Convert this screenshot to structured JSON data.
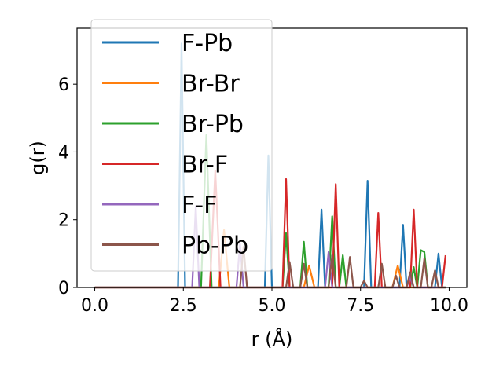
{
  "chart_data": {
    "type": "line",
    "xlabel": "r (Å)",
    "ylabel": "g(r)",
    "xlim": [
      -0.5,
      10.5
    ],
    "ylim": [
      0,
      7.65
    ],
    "xticks": [
      "0.0",
      "2.5",
      "5.0",
      "7.5",
      "10.0"
    ],
    "xtick_values": [
      0,
      2.5,
      5,
      7.5,
      10
    ],
    "yticks": [
      "0",
      "2",
      "4",
      "6"
    ],
    "ytick_values": [
      0,
      2,
      4,
      6
    ],
    "grid": false,
    "legend_position": "top-left",
    "series": [
      {
        "name": "F-Pb",
        "color": "#1f77b4",
        "points": [
          [
            0,
            0
          ],
          [
            2.35,
            0
          ],
          [
            2.45,
            7.2
          ],
          [
            2.55,
            0
          ],
          [
            4.8,
            0
          ],
          [
            4.9,
            3.9
          ],
          [
            5.0,
            0
          ],
          [
            6.3,
            0
          ],
          [
            6.4,
            2.3
          ],
          [
            6.5,
            0
          ],
          [
            7.6,
            0
          ],
          [
            7.7,
            3.15
          ],
          [
            7.8,
            0
          ],
          [
            8.6,
            0
          ],
          [
            8.7,
            1.85
          ],
          [
            8.8,
            0
          ],
          [
            9.6,
            0
          ],
          [
            9.7,
            1.0
          ],
          [
            9.8,
            0
          ],
          [
            9.9,
            0
          ]
        ]
      },
      {
        "name": "Br-Br",
        "color": "#ff7f0e",
        "points": [
          [
            0,
            0
          ],
          [
            3.5,
            0
          ],
          [
            3.65,
            1.7
          ],
          [
            3.8,
            0
          ],
          [
            5.9,
            0
          ],
          [
            6.05,
            0.65
          ],
          [
            6.2,
            0
          ],
          [
            8.4,
            0
          ],
          [
            8.55,
            0.65
          ],
          [
            8.7,
            0
          ],
          [
            9.9,
            0
          ]
        ]
      },
      {
        "name": "Br-Pb",
        "color": "#2ca02c",
        "points": [
          [
            0,
            0
          ],
          [
            3.0,
            0
          ],
          [
            3.15,
            4.5
          ],
          [
            3.3,
            0
          ],
          [
            5.3,
            0
          ],
          [
            5.4,
            1.6
          ],
          [
            5.5,
            0
          ],
          [
            5.8,
            0
          ],
          [
            5.9,
            1.35
          ],
          [
            6.0,
            0
          ],
          [
            6.6,
            0
          ],
          [
            6.7,
            2.1
          ],
          [
            6.8,
            0
          ],
          [
            6.9,
            0
          ],
          [
            7.0,
            0.95
          ],
          [
            7.1,
            0
          ],
          [
            8.9,
            0
          ],
          [
            9.0,
            0.6
          ],
          [
            9.1,
            0
          ],
          [
            9.2,
            1.1
          ],
          [
            9.3,
            1.05
          ],
          [
            9.4,
            0
          ],
          [
            9.9,
            0
          ]
        ]
      },
      {
        "name": "Br-F",
        "color": "#d62728",
        "points": [
          [
            0,
            0
          ],
          [
            3.25,
            0
          ],
          [
            3.4,
            3.45
          ],
          [
            3.55,
            0
          ],
          [
            5.3,
            0
          ],
          [
            5.4,
            3.2
          ],
          [
            5.5,
            0
          ],
          [
            6.7,
            0
          ],
          [
            6.8,
            3.05
          ],
          [
            6.9,
            0
          ],
          [
            7.9,
            0
          ],
          [
            8.0,
            2.2
          ],
          [
            8.1,
            0
          ],
          [
            8.9,
            0
          ],
          [
            9.0,
            2.3
          ],
          [
            9.1,
            0
          ],
          [
            9.8,
            0
          ],
          [
            9.9,
            0.95
          ]
        ]
      },
      {
        "name": "F-F",
        "color": "#9467bd",
        "points": [
          [
            0,
            0
          ],
          [
            2.75,
            0
          ],
          [
            2.85,
            2.4
          ],
          [
            2.95,
            0
          ],
          [
            4.0,
            0
          ],
          [
            4.1,
            1.3
          ],
          [
            4.2,
            0
          ],
          [
            6.5,
            0
          ],
          [
            6.6,
            1.05
          ],
          [
            6.7,
            0
          ],
          [
            8.8,
            0
          ],
          [
            8.9,
            0.3
          ],
          [
            9.0,
            0
          ],
          [
            9.9,
            0
          ]
        ]
      },
      {
        "name": "Pb-Pb",
        "color": "#8c564b",
        "points": [
          [
            0,
            0
          ],
          [
            4.1,
            0
          ],
          [
            4.2,
            1.2
          ],
          [
            4.3,
            0
          ],
          [
            5.4,
            0
          ],
          [
            5.5,
            0.75
          ],
          [
            5.6,
            0
          ],
          [
            5.8,
            0
          ],
          [
            5.9,
            0.7
          ],
          [
            6.0,
            0
          ],
          [
            6.6,
            0
          ],
          [
            6.7,
            0.95
          ],
          [
            6.8,
            0
          ],
          [
            7.1,
            0
          ],
          [
            7.2,
            0.9
          ],
          [
            7.3,
            0
          ],
          [
            7.5,
            0
          ],
          [
            7.6,
            0.2
          ],
          [
            7.7,
            0
          ],
          [
            8.0,
            0
          ],
          [
            8.1,
            0.7
          ],
          [
            8.2,
            0
          ],
          [
            8.4,
            0
          ],
          [
            8.5,
            0.35
          ],
          [
            8.6,
            0
          ],
          [
            8.8,
            0
          ],
          [
            8.9,
            0.45
          ],
          [
            9.0,
            0
          ],
          [
            9.2,
            0
          ],
          [
            9.3,
            0.85
          ],
          [
            9.4,
            0
          ],
          [
            9.5,
            0
          ],
          [
            9.6,
            0.5
          ],
          [
            9.7,
            0
          ],
          [
            9.9,
            0
          ]
        ]
      }
    ]
  }
}
